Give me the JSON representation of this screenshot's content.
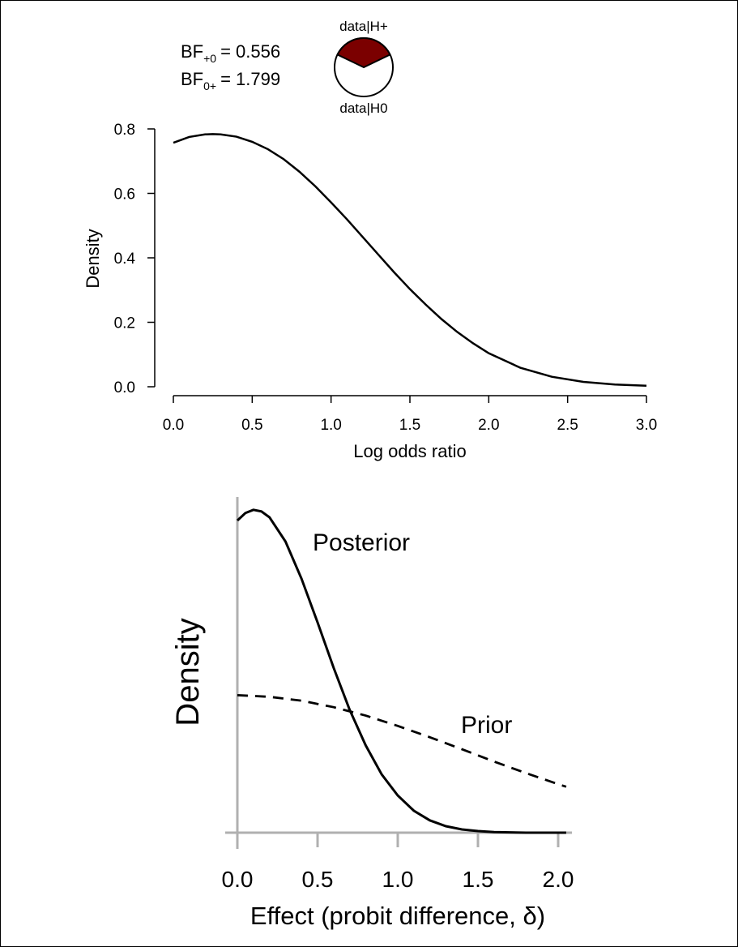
{
  "bayes_factor": {
    "bf_plus0": {
      "prefix": "BF",
      "sub": "+0",
      "value": "= 0.556"
    },
    "bf_0plus": {
      "prefix": "BF",
      "sub": "0+",
      "value": "= 1.799"
    }
  },
  "pie": {
    "top_label": "data|H+",
    "bottom_label": "data|H0",
    "h_plus_fraction": 0.357,
    "h_plus_color": "#7b0000",
    "h_zero_color": "#ffffff"
  },
  "chart_data": [
    {
      "type": "line",
      "title": "",
      "xlabel": "Log odds ratio",
      "ylabel": "Density",
      "xlim": [
        0,
        3
      ],
      "ylim": [
        0,
        0.8
      ],
      "xticks": [
        "0.0",
        "0.5",
        "1.0",
        "1.5",
        "2.0",
        "2.5",
        "3.0"
      ],
      "yticks": [
        "0.0",
        "0.2",
        "0.4",
        "0.6",
        "0.8"
      ],
      "grid": false,
      "series": [
        {
          "x": [
            0,
            0.1,
            0.2,
            0.25,
            0.3,
            0.4,
            0.5,
            0.6,
            0.7,
            0.8,
            0.9,
            1.0,
            1.1,
            1.2,
            1.3,
            1.4,
            1.5,
            1.6,
            1.7,
            1.8,
            1.9,
            2.0,
            2.2,
            2.4,
            2.6,
            2.8,
            3.0
          ],
          "y": [
            0.757,
            0.775,
            0.783,
            0.784,
            0.783,
            0.776,
            0.76,
            0.737,
            0.706,
            0.667,
            0.622,
            0.572,
            0.52,
            0.465,
            0.41,
            0.355,
            0.303,
            0.255,
            0.21,
            0.17,
            0.135,
            0.104,
            0.059,
            0.031,
            0.015,
            0.007,
            0.003
          ]
        }
      ]
    },
    {
      "type": "line",
      "title": "",
      "xlabel": "Effect (probit difference, δ)",
      "ylabel": "Density",
      "xlim": [
        0,
        2.0
      ],
      "ylim": [
        0,
        1.0
      ],
      "xticks": [
        "0.0",
        "0.5",
        "1.0",
        "1.5",
        "2.0"
      ],
      "yticks": [],
      "grid": false,
      "series": [
        {
          "name": "Posterior",
          "style": "solid",
          "x": [
            0,
            0.05,
            0.1,
            0.15,
            0.2,
            0.3,
            0.4,
            0.5,
            0.6,
            0.7,
            0.8,
            0.9,
            1.0,
            1.1,
            1.2,
            1.3,
            1.4,
            1.5,
            1.6,
            1.7,
            1.8,
            1.9,
            2.0,
            2.05
          ],
          "y": [
            0.965,
            0.988,
            0.998,
            0.993,
            0.975,
            0.9,
            0.785,
            0.65,
            0.51,
            0.38,
            0.27,
            0.18,
            0.115,
            0.068,
            0.038,
            0.02,
            0.01,
            0.005,
            0.002,
            0.001,
            0.0,
            0.0,
            0.0,
            0.0
          ]
        },
        {
          "name": "Prior",
          "style": "dashed",
          "x": [
            0,
            0.2,
            0.4,
            0.6,
            0.8,
            1.0,
            1.2,
            1.4,
            1.6,
            1.8,
            2.0,
            2.05
          ],
          "y": [
            0.425,
            0.42,
            0.408,
            0.388,
            0.362,
            0.33,
            0.295,
            0.258,
            0.22,
            0.184,
            0.15,
            0.142
          ]
        }
      ]
    }
  ]
}
